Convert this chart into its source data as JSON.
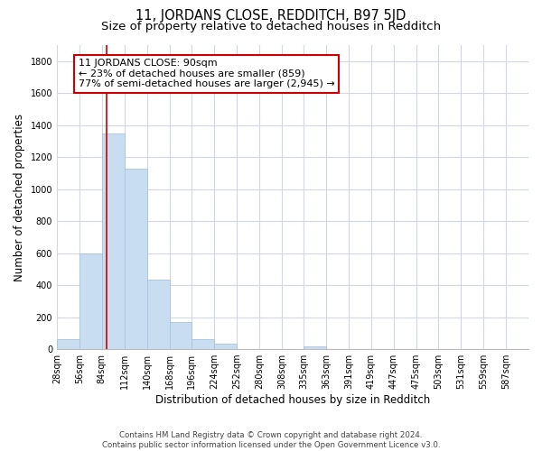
{
  "title": "11, JORDANS CLOSE, REDDITCH, B97 5JD",
  "subtitle": "Size of property relative to detached houses in Redditch",
  "xlabel": "Distribution of detached houses by size in Redditch",
  "ylabel": "Number of detached properties",
  "bar_color": "#c8ddf0",
  "bar_edge_color": "#a8c4e0",
  "bin_starts": [
    28,
    56,
    84,
    112,
    140,
    168,
    196,
    224,
    252,
    280,
    308,
    335,
    363,
    391,
    419,
    447,
    475,
    503,
    531,
    559
  ],
  "bin_width": 28,
  "bar_heights": [
    60,
    600,
    1350,
    1130,
    435,
    170,
    60,
    35,
    0,
    0,
    0,
    15,
    0,
    0,
    0,
    0,
    0,
    0,
    0,
    0
  ],
  "tick_labels": [
    "28sqm",
    "56sqm",
    "84sqm",
    "112sqm",
    "140sqm",
    "168sqm",
    "196sqm",
    "224sqm",
    "252sqm",
    "280sqm",
    "308sqm",
    "335sqm",
    "363sqm",
    "391sqm",
    "419sqm",
    "447sqm",
    "475sqm",
    "503sqm",
    "531sqm",
    "559sqm",
    "587sqm"
  ],
  "property_line_x": 90,
  "property_line_color": "#cc0000",
  "annotation_line1": "11 JORDANS CLOSE: 90sqm",
  "annotation_line2": "← 23% of detached houses are smaller (859)",
  "annotation_line3": "77% of semi-detached houses are larger (2,945) →",
  "annotation_box_color": "#ffffff",
  "annotation_box_edge": "#cc0000",
  "ylim": [
    0,
    1900
  ],
  "yticks": [
    0,
    200,
    400,
    600,
    800,
    1000,
    1200,
    1400,
    1600,
    1800
  ],
  "footnote": "Contains HM Land Registry data © Crown copyright and database right 2024.\nContains public sector information licensed under the Open Government Licence v3.0.",
  "background_color": "#ffffff",
  "grid_color": "#d0d8e8",
  "title_fontsize": 10.5,
  "subtitle_fontsize": 9.5,
  "axis_label_fontsize": 8.5,
  "tick_fontsize": 7,
  "annotation_fontsize": 8,
  "footnote_fontsize": 6.2
}
